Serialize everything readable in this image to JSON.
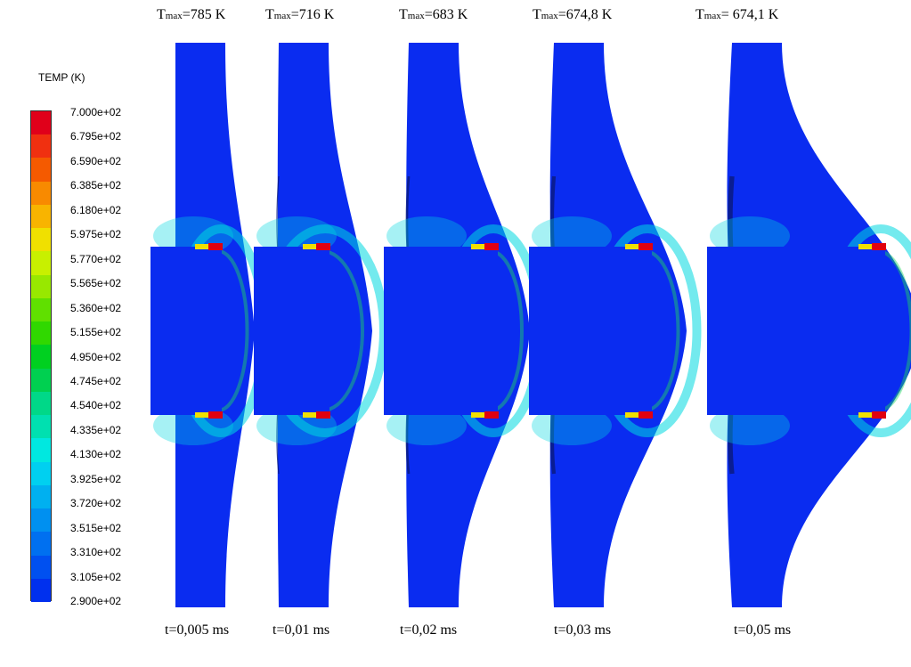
{
  "legend": {
    "title": "TEMP (K)",
    "levels": [
      {
        "label": "7.000e+02",
        "color": "#e0001a"
      },
      {
        "label": "6.795e+02",
        "color": "#f03010"
      },
      {
        "label": "6.590e+02",
        "color": "#f55a00"
      },
      {
        "label": "6.385e+02",
        "color": "#f88a00"
      },
      {
        "label": "6.180e+02",
        "color": "#f8b400"
      },
      {
        "label": "5.975e+02",
        "color": "#f0e000"
      },
      {
        "label": "5.770e+02",
        "color": "#c8f000"
      },
      {
        "label": "5.565e+02",
        "color": "#98e800"
      },
      {
        "label": "5.360e+02",
        "color": "#60e000"
      },
      {
        "label": "5.155e+02",
        "color": "#30d800"
      },
      {
        "label": "4.950e+02",
        "color": "#00d020"
      },
      {
        "label": "4.745e+02",
        "color": "#00d050"
      },
      {
        "label": "4.540e+02",
        "color": "#00d888"
      },
      {
        "label": "4.335e+02",
        "color": "#00e0b0"
      },
      {
        "label": "4.130e+02",
        "color": "#00e8e0"
      },
      {
        "label": "3.925e+02",
        "color": "#00d0f0"
      },
      {
        "label": "3.720e+02",
        "color": "#00b0f0"
      },
      {
        "label": "3.515e+02",
        "color": "#0090f0"
      },
      {
        "label": "3.310e+02",
        "color": "#0070f0"
      },
      {
        "label": "3.105e+02",
        "color": "#0050f0"
      },
      {
        "label": "2.900e+02",
        "color": "#0030ee"
      }
    ]
  },
  "panels": [
    {
      "tmax_value": "=785 K",
      "time": "t=0,005 ms",
      "pin_width": 40,
      "bulge": 55,
      "shadow": 0
    },
    {
      "tmax_value": "=716 K",
      "time": "t=0,01 ms",
      "pin_width": 45,
      "bulge": 80,
      "shadow": 0.2
    },
    {
      "tmax_value": "=683 K",
      "time": "t=0,02 ms",
      "pin_width": 88,
      "bulge": 60,
      "shadow": 0.45
    },
    {
      "tmax_value": "=674,8 K",
      "time": "t=0,03 ms",
      "pin_width": 98,
      "bulge": 65,
      "shadow": 0.7
    },
    {
      "tmax_value": "= 674,1 K",
      "time": "t=0,05 ms",
      "pin_width": 160,
      "bulge": 65,
      "shadow": 0.9
    }
  ],
  "tmax_prefix": "T",
  "tmax_subscript": "max",
  "colors": {
    "base": "#0a2cf0",
    "dark": "#0a1a7a",
    "warm_cyan": "#00d8e0",
    "warm_green": "#20d860",
    "hot_red": "#e00010",
    "hot_yellow": "#f0e000"
  }
}
